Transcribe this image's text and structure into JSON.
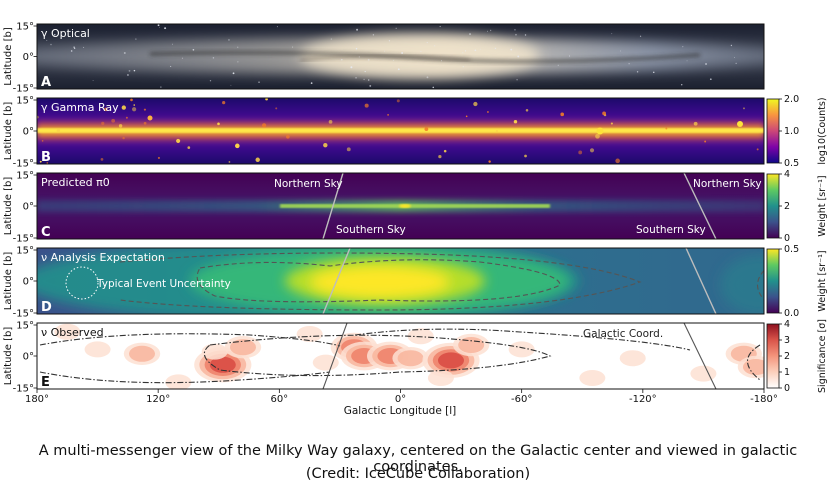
{
  "caption": {
    "line1": "A multi-messenger view of the Milky Way galaxy, centered on the Galactic center and viewed in galactic coordinates.",
    "line2": "(Credit: IceCube Collaboration)"
  },
  "chart_data": [
    {
      "type": "heatmap",
      "panel": "A",
      "label": "γ Optical",
      "ylabel": "Latitude [b]",
      "yticks": [
        "15°",
        "0°",
        "-15°"
      ],
      "xlim": [
        180,
        -180
      ],
      "ylim": [
        -15,
        15
      ],
      "colorbar": null
    },
    {
      "type": "heatmap",
      "panel": "B",
      "label": "γ Gamma Ray",
      "ylabel": "Latitude [b]",
      "yticks": [
        "15°",
        "0°",
        "-15°"
      ],
      "xlim": [
        180,
        -180
      ],
      "ylim": [
        -15,
        15
      ],
      "colorbar": {
        "label": "log10(Counts)",
        "ticks": [
          "2.0",
          "1.0",
          "0.5"
        ],
        "colormap": "plasma"
      }
    },
    {
      "type": "heatmap",
      "panel": "C",
      "label": "Predicted π0",
      "ylabel": "Latitude [b]",
      "yticks": [
        "15°",
        "0°",
        "-15°"
      ],
      "xlim": [
        180,
        -180
      ],
      "ylim": [
        -15,
        15
      ],
      "annotations": [
        "Northern Sky",
        "Southern Sky",
        "Northern Sky",
        "Southern Sky"
      ],
      "colorbar": {
        "label": "Weight [sr⁻¹]",
        "ticks": [
          "4",
          "2",
          "0"
        ],
        "colormap": "viridis"
      }
    },
    {
      "type": "heatmap",
      "panel": "D",
      "label": "ν Analysis Expectation",
      "ylabel": "Latitude [b]",
      "yticks": [
        "15°",
        "0°",
        "-15°"
      ],
      "xlim": [
        180,
        -180
      ],
      "ylim": [
        -15,
        15
      ],
      "annotations": [
        "Typical Event Uncertainty"
      ],
      "colorbar": {
        "label": "Weight [sr⁻¹]",
        "ticks": [
          "0.5",
          "0.0"
        ],
        "colormap": "viridis"
      }
    },
    {
      "type": "heatmap",
      "panel": "E",
      "label": "ν Observed",
      "ylabel": "Latitude [b]",
      "xlabel": "Galactic Longitude [l]",
      "yticks": [
        "15°",
        "0°",
        "-15°"
      ],
      "xticks": [
        "180°",
        "120°",
        "60°",
        "0°",
        "-60°",
        "-120°",
        "-180°"
      ],
      "xlim": [
        180,
        -180
      ],
      "ylim": [
        -15,
        15
      ],
      "annotations": [
        "Galactic Coord."
      ],
      "hotspots": [
        {
          "l": 88,
          "b": -4,
          "sig": 4.0
        },
        {
          "l": 92,
          "b": 2,
          "sig": 1.0
        },
        {
          "l": 78,
          "b": 4,
          "sig": 1.5
        },
        {
          "l": 128,
          "b": 1,
          "sig": 1.5
        },
        {
          "l": 150,
          "b": 3,
          "sig": 1.0
        },
        {
          "l": 165,
          "b": 11,
          "sig": 1.2
        },
        {
          "l": 110,
          "b": -12,
          "sig": 1.0
        },
        {
          "l": 45,
          "b": 10,
          "sig": 1.0
        },
        {
          "l": 37,
          "b": -3,
          "sig": 1.0
        },
        {
          "l": 23,
          "b": 4,
          "sig": 2.5
        },
        {
          "l": 18,
          "b": 0,
          "sig": 3.2
        },
        {
          "l": 5,
          "b": 0,
          "sig": 2.5
        },
        {
          "l": -5,
          "b": -1,
          "sig": 2.0
        },
        {
          "l": -25,
          "b": -2,
          "sig": 3.5
        },
        {
          "l": -10,
          "b": 9,
          "sig": 1.2
        },
        {
          "l": -35,
          "b": 5,
          "sig": 1.5
        },
        {
          "l": -20,
          "b": -10,
          "sig": 1.0
        },
        {
          "l": -95,
          "b": -10,
          "sig": 1.0
        },
        {
          "l": -115,
          "b": -1,
          "sig": 1.2
        },
        {
          "l": -150,
          "b": -8,
          "sig": 1.0
        },
        {
          "l": -170,
          "b": 1,
          "sig": 2.0
        },
        {
          "l": -176,
          "b": -5,
          "sig": 1.5
        },
        {
          "l": -60,
          "b": 3,
          "sig": 0.8
        }
      ],
      "colorbar": {
        "label": "Significance [σ]",
        "ticks": [
          "4",
          "3",
          "2",
          "1",
          "0"
        ],
        "colormap": "reds"
      }
    }
  ]
}
